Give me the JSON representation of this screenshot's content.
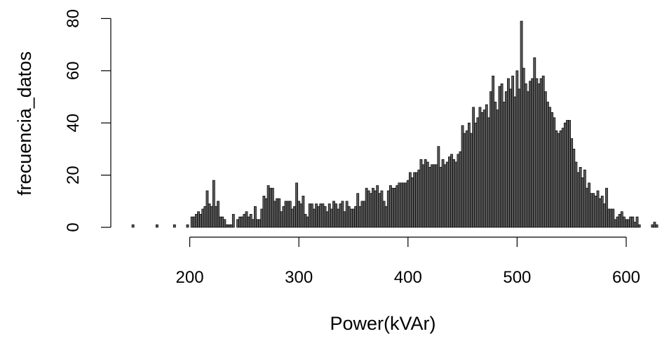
{
  "chart_data": {
    "type": "bar",
    "title": "",
    "xlabel": "Power(kVAr)",
    "ylabel": "frecuencia_datos",
    "xlim": [
      145,
      630
    ],
    "ylim": [
      0,
      80
    ],
    "x_ticks": [
      200,
      300,
      400,
      500,
      600
    ],
    "y_ticks": [
      0,
      20,
      40,
      60,
      80
    ],
    "bin_width": 2,
    "bar_fill": "#5a5a5a",
    "bar_stroke": "#000000",
    "grid": false,
    "bins": [
      {
        "x": 148,
        "y": 1
      },
      {
        "x": 170,
        "y": 1
      },
      {
        "x": 186,
        "y": 1
      },
      {
        "x": 198,
        "y": 1
      },
      {
        "x": 202,
        "y": 4
      },
      {
        "x": 204,
        "y": 4
      },
      {
        "x": 206,
        "y": 5
      },
      {
        "x": 208,
        "y": 6
      },
      {
        "x": 210,
        "y": 5
      },
      {
        "x": 212,
        "y": 7
      },
      {
        "x": 214,
        "y": 8
      },
      {
        "x": 216,
        "y": 14
      },
      {
        "x": 218,
        "y": 9
      },
      {
        "x": 220,
        "y": 8
      },
      {
        "x": 222,
        "y": 18
      },
      {
        "x": 224,
        "y": 8
      },
      {
        "x": 226,
        "y": 10
      },
      {
        "x": 228,
        "y": 4
      },
      {
        "x": 230,
        "y": 4
      },
      {
        "x": 232,
        "y": 3
      },
      {
        "x": 234,
        "y": 1
      },
      {
        "x": 236,
        "y": 1
      },
      {
        "x": 238,
        "y": 1
      },
      {
        "x": 240,
        "y": 5
      },
      {
        "x": 244,
        "y": 3
      },
      {
        "x": 246,
        "y": 4
      },
      {
        "x": 248,
        "y": 4
      },
      {
        "x": 250,
        "y": 5
      },
      {
        "x": 252,
        "y": 6
      },
      {
        "x": 254,
        "y": 4
      },
      {
        "x": 256,
        "y": 5
      },
      {
        "x": 258,
        "y": 3
      },
      {
        "x": 260,
        "y": 8
      },
      {
        "x": 262,
        "y": 3
      },
      {
        "x": 264,
        "y": 3
      },
      {
        "x": 266,
        "y": 7
      },
      {
        "x": 268,
        "y": 12
      },
      {
        "x": 270,
        "y": 11
      },
      {
        "x": 272,
        "y": 16
      },
      {
        "x": 274,
        "y": 15
      },
      {
        "x": 276,
        "y": 15
      },
      {
        "x": 278,
        "y": 10
      },
      {
        "x": 280,
        "y": 11
      },
      {
        "x": 282,
        "y": 11
      },
      {
        "x": 284,
        "y": 6
      },
      {
        "x": 286,
        "y": 8
      },
      {
        "x": 288,
        "y": 10
      },
      {
        "x": 290,
        "y": 10
      },
      {
        "x": 292,
        "y": 10
      },
      {
        "x": 294,
        "y": 7
      },
      {
        "x": 296,
        "y": 8
      },
      {
        "x": 298,
        "y": 17
      },
      {
        "x": 300,
        "y": 10
      },
      {
        "x": 302,
        "y": 9
      },
      {
        "x": 304,
        "y": 12
      },
      {
        "x": 306,
        "y": 5
      },
      {
        "x": 308,
        "y": 4
      },
      {
        "x": 310,
        "y": 9
      },
      {
        "x": 312,
        "y": 9
      },
      {
        "x": 314,
        "y": 7
      },
      {
        "x": 316,
        "y": 9
      },
      {
        "x": 318,
        "y": 8
      },
      {
        "x": 320,
        "y": 9
      },
      {
        "x": 322,
        "y": 9
      },
      {
        "x": 324,
        "y": 8
      },
      {
        "x": 326,
        "y": 6
      },
      {
        "x": 328,
        "y": 9
      },
      {
        "x": 330,
        "y": 7
      },
      {
        "x": 332,
        "y": 10
      },
      {
        "x": 334,
        "y": 9
      },
      {
        "x": 336,
        "y": 7
      },
      {
        "x": 338,
        "y": 9
      },
      {
        "x": 340,
        "y": 10
      },
      {
        "x": 342,
        "y": 6
      },
      {
        "x": 344,
        "y": 10
      },
      {
        "x": 346,
        "y": 8
      },
      {
        "x": 348,
        "y": 7
      },
      {
        "x": 350,
        "y": 7
      },
      {
        "x": 352,
        "y": 8
      },
      {
        "x": 354,
        "y": 13
      },
      {
        "x": 356,
        "y": 8
      },
      {
        "x": 358,
        "y": 10
      },
      {
        "x": 360,
        "y": 10
      },
      {
        "x": 362,
        "y": 15
      },
      {
        "x": 364,
        "y": 14
      },
      {
        "x": 366,
        "y": 13
      },
      {
        "x": 368,
        "y": 15
      },
      {
        "x": 370,
        "y": 14
      },
      {
        "x": 372,
        "y": 16
      },
      {
        "x": 374,
        "y": 13
      },
      {
        "x": 376,
        "y": 14
      },
      {
        "x": 378,
        "y": 10
      },
      {
        "x": 380,
        "y": 8
      },
      {
        "x": 382,
        "y": 14
      },
      {
        "x": 384,
        "y": 16
      },
      {
        "x": 386,
        "y": 15
      },
      {
        "x": 388,
        "y": 15
      },
      {
        "x": 390,
        "y": 16
      },
      {
        "x": 392,
        "y": 17
      },
      {
        "x": 394,
        "y": 17
      },
      {
        "x": 396,
        "y": 17
      },
      {
        "x": 398,
        "y": 17
      },
      {
        "x": 400,
        "y": 18
      },
      {
        "x": 402,
        "y": 21
      },
      {
        "x": 404,
        "y": 19
      },
      {
        "x": 406,
        "y": 21
      },
      {
        "x": 408,
        "y": 21
      },
      {
        "x": 410,
        "y": 22
      },
      {
        "x": 412,
        "y": 26
      },
      {
        "x": 414,
        "y": 24
      },
      {
        "x": 416,
        "y": 26
      },
      {
        "x": 418,
        "y": 25
      },
      {
        "x": 420,
        "y": 23
      },
      {
        "x": 422,
        "y": 24
      },
      {
        "x": 424,
        "y": 24
      },
      {
        "x": 426,
        "y": 24
      },
      {
        "x": 428,
        "y": 31
      },
      {
        "x": 430,
        "y": 23
      },
      {
        "x": 432,
        "y": 26
      },
      {
        "x": 434,
        "y": 24
      },
      {
        "x": 436,
        "y": 25
      },
      {
        "x": 438,
        "y": 27
      },
      {
        "x": 440,
        "y": 28
      },
      {
        "x": 442,
        "y": 26
      },
      {
        "x": 444,
        "y": 25
      },
      {
        "x": 446,
        "y": 28
      },
      {
        "x": 448,
        "y": 29
      },
      {
        "x": 450,
        "y": 39
      },
      {
        "x": 452,
        "y": 36
      },
      {
        "x": 454,
        "y": 37
      },
      {
        "x": 456,
        "y": 40
      },
      {
        "x": 458,
        "y": 36
      },
      {
        "x": 460,
        "y": 46
      },
      {
        "x": 462,
        "y": 40
      },
      {
        "x": 464,
        "y": 42
      },
      {
        "x": 466,
        "y": 46
      },
      {
        "x": 468,
        "y": 44
      },
      {
        "x": 470,
        "y": 45
      },
      {
        "x": 472,
        "y": 47
      },
      {
        "x": 474,
        "y": 42
      },
      {
        "x": 476,
        "y": 52
      },
      {
        "x": 478,
        "y": 58
      },
      {
        "x": 480,
        "y": 48
      },
      {
        "x": 482,
        "y": 45
      },
      {
        "x": 484,
        "y": 54
      },
      {
        "x": 486,
        "y": 55
      },
      {
        "x": 488,
        "y": 48
      },
      {
        "x": 490,
        "y": 52
      },
      {
        "x": 492,
        "y": 57
      },
      {
        "x": 494,
        "y": 53
      },
      {
        "x": 496,
        "y": 58
      },
      {
        "x": 498,
        "y": 50
      },
      {
        "x": 500,
        "y": 60
      },
      {
        "x": 502,
        "y": 53
      },
      {
        "x": 504,
        "y": 79
      },
      {
        "x": 506,
        "y": 61
      },
      {
        "x": 508,
        "y": 55
      },
      {
        "x": 510,
        "y": 52
      },
      {
        "x": 512,
        "y": 56
      },
      {
        "x": 514,
        "y": 57
      },
      {
        "x": 516,
        "y": 65
      },
      {
        "x": 518,
        "y": 57
      },
      {
        "x": 520,
        "y": 55
      },
      {
        "x": 522,
        "y": 57
      },
      {
        "x": 524,
        "y": 58
      },
      {
        "x": 526,
        "y": 52
      },
      {
        "x": 528,
        "y": 48
      },
      {
        "x": 530,
        "y": 46
      },
      {
        "x": 532,
        "y": 44
      },
      {
        "x": 534,
        "y": 42
      },
      {
        "x": 536,
        "y": 37
      },
      {
        "x": 538,
        "y": 36
      },
      {
        "x": 540,
        "y": 37
      },
      {
        "x": 542,
        "y": 38
      },
      {
        "x": 544,
        "y": 40
      },
      {
        "x": 546,
        "y": 41
      },
      {
        "x": 548,
        "y": 41
      },
      {
        "x": 550,
        "y": 34
      },
      {
        "x": 552,
        "y": 30
      },
      {
        "x": 554,
        "y": 25
      },
      {
        "x": 556,
        "y": 21
      },
      {
        "x": 558,
        "y": 23
      },
      {
        "x": 560,
        "y": 19
      },
      {
        "x": 562,
        "y": 22
      },
      {
        "x": 564,
        "y": 15
      },
      {
        "x": 566,
        "y": 17
      },
      {
        "x": 568,
        "y": 13
      },
      {
        "x": 570,
        "y": 13
      },
      {
        "x": 572,
        "y": 12
      },
      {
        "x": 574,
        "y": 14
      },
      {
        "x": 576,
        "y": 11
      },
      {
        "x": 578,
        "y": 12
      },
      {
        "x": 580,
        "y": 9
      },
      {
        "x": 582,
        "y": 15
      },
      {
        "x": 584,
        "y": 7
      },
      {
        "x": 586,
        "y": 7
      },
      {
        "x": 588,
        "y": 7
      },
      {
        "x": 590,
        "y": 3
      },
      {
        "x": 592,
        "y": 4
      },
      {
        "x": 594,
        "y": 5
      },
      {
        "x": 596,
        "y": 6
      },
      {
        "x": 598,
        "y": 4
      },
      {
        "x": 600,
        "y": 3
      },
      {
        "x": 602,
        "y": 3
      },
      {
        "x": 604,
        "y": 4
      },
      {
        "x": 606,
        "y": 4
      },
      {
        "x": 608,
        "y": 2
      },
      {
        "x": 610,
        "y": 4
      },
      {
        "x": 612,
        "y": 1
      },
      {
        "x": 624,
        "y": 1
      },
      {
        "x": 626,
        "y": 2
      },
      {
        "x": 628,
        "y": 1
      }
    ]
  }
}
